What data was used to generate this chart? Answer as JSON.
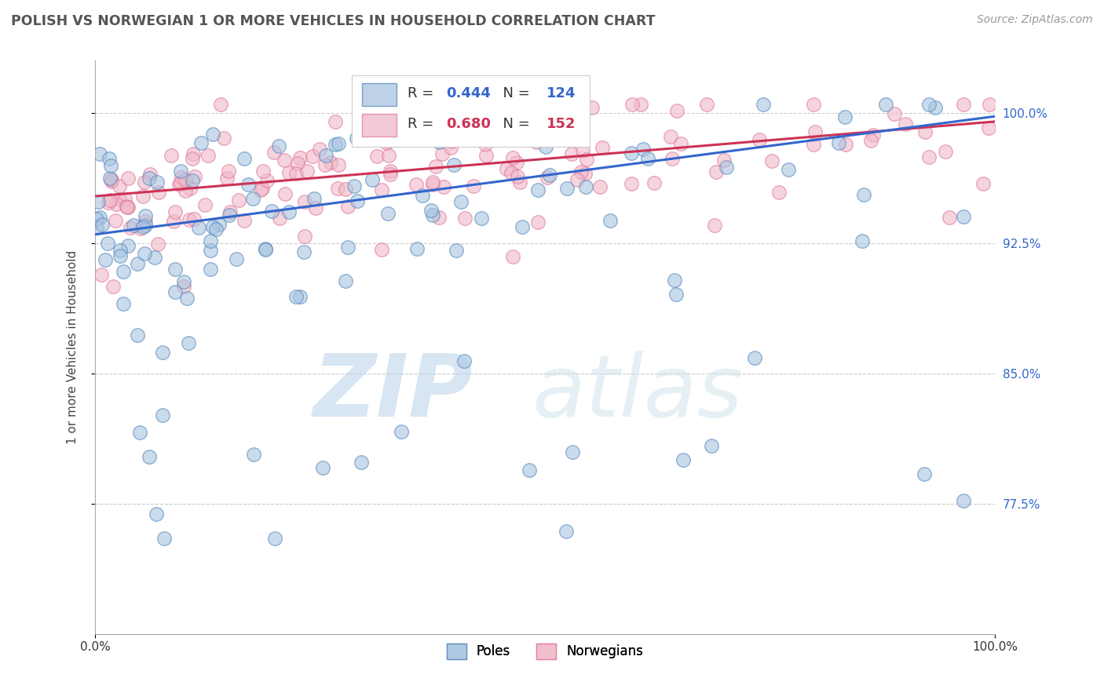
{
  "title": "POLISH VS NORWEGIAN 1 OR MORE VEHICLES IN HOUSEHOLD CORRELATION CHART",
  "ylabel": "1 or more Vehicles in Household",
  "source": "Source: ZipAtlas.com",
  "xlim": [
    0.0,
    1.0
  ],
  "ylim": [
    0.7,
    1.03
  ],
  "xticklabels": [
    "0.0%",
    "100.0%"
  ],
  "ytick_positions": [
    0.775,
    0.85,
    0.925,
    1.0
  ],
  "ytick_labels": [
    "77.5%",
    "85.0%",
    "92.5%",
    "100.0%"
  ],
  "poles_color": "#a8c4e0",
  "poles_edge_color": "#5588bb",
  "norwegians_color": "#f0b8c8",
  "norwegians_edge_color": "#dd7799",
  "regression_poles_color": "#3366cc",
  "regression_norwegians_color": "#cc3355",
  "poles_R": 0.444,
  "poles_N": 124,
  "norwegians_R": 0.68,
  "norwegians_N": 152,
  "watermark_zip": "ZIP",
  "watermark_atlas": "atlas",
  "watermark_color": "#c8dff0",
  "background_color": "#ffffff",
  "grid_color": "#cccccc",
  "title_color": "#555555",
  "source_color": "#999999",
  "poles_intercept": 0.93,
  "poles_slope": 0.068,
  "norwegians_intercept": 0.952,
  "norwegians_slope": 0.043
}
